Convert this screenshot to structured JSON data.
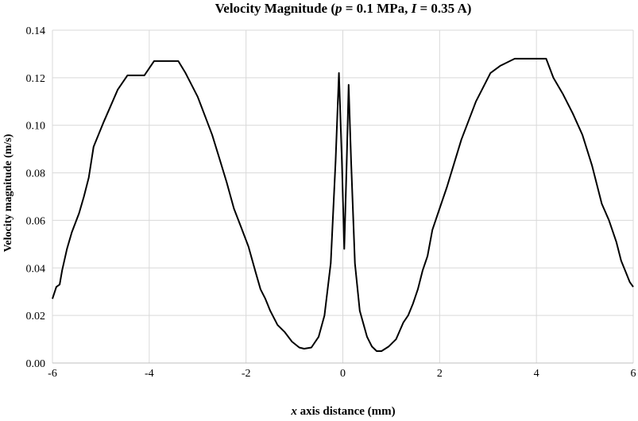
{
  "chart_data": {
    "type": "line",
    "title_parts": [
      {
        "text": "Velocity  Magnitude  (",
        "italic": false
      },
      {
        "text": "p",
        "italic": true
      },
      {
        "text": " = 0.1 MPa, ",
        "italic": false
      },
      {
        "text": "I",
        "italic": true
      },
      {
        "text": " = 0.35 A)",
        "italic": false
      }
    ],
    "xlabel_parts": [
      {
        "text": "x",
        "italic": true
      },
      {
        "text": " axis distance (mm)",
        "italic": false
      }
    ],
    "ylabel": "Velocity magnitude (m/s)",
    "xlim": [
      -6,
      6
    ],
    "ylim": [
      0,
      0.14
    ],
    "xticks": [
      -6,
      -4,
      -2,
      0,
      2,
      4,
      6
    ],
    "xtick_labels": [
      "-6",
      "-4",
      "-2",
      "0",
      "2",
      "4",
      "6"
    ],
    "yticks": [
      0,
      0.02,
      0.04,
      0.06,
      0.08,
      0.1,
      0.12,
      0.14
    ],
    "ytick_labels": [
      "0.00",
      "0.02",
      "0.04",
      "0.06",
      "0.08",
      "0.10",
      "0.12",
      "0.14"
    ],
    "grid": true,
    "line_color": "#000000",
    "grid_color": "#d9d9d9",
    "series": [
      {
        "x": [
          -6.0,
          -5.92,
          -5.85,
          -5.8,
          -5.7,
          -5.6,
          -5.45,
          -5.35,
          -5.25,
          -5.15,
          -4.95,
          -4.8,
          -4.65,
          -4.45,
          -4.1,
          -3.9,
          -3.6,
          -3.4,
          -3.25,
          -3.15,
          -3.0,
          -2.85,
          -2.7,
          -2.55,
          -2.4,
          -2.25,
          -2.1,
          -1.95,
          -1.8,
          -1.7,
          -1.6,
          -1.5,
          -1.35,
          -1.2,
          -1.05,
          -0.9,
          -0.8,
          -0.65,
          -0.5,
          -0.38,
          -0.25,
          -0.15,
          -0.08,
          -0.02,
          0.03,
          0.08,
          0.12,
          0.17,
          0.25,
          0.35,
          0.5,
          0.6,
          0.7,
          0.8,
          0.95,
          1.1,
          1.25,
          1.35,
          1.45,
          1.55,
          1.65,
          1.75,
          1.85,
          2.0,
          2.15,
          2.3,
          2.45,
          2.6,
          2.75,
          2.9,
          3.05,
          3.25,
          3.55,
          3.75,
          4.2,
          4.35,
          4.55,
          4.75,
          4.95,
          5.15,
          5.35,
          5.5,
          5.65,
          5.75,
          5.85,
          5.93,
          6.0
        ],
        "y": [
          0.027,
          0.032,
          0.033,
          0.039,
          0.048,
          0.055,
          0.063,
          0.07,
          0.078,
          0.091,
          0.101,
          0.108,
          0.115,
          0.121,
          0.121,
          0.127,
          0.127,
          0.127,
          0.122,
          0.118,
          0.112,
          0.104,
          0.096,
          0.086,
          0.076,
          0.065,
          0.057,
          0.049,
          0.038,
          0.031,
          0.027,
          0.022,
          0.016,
          0.013,
          0.009,
          0.0065,
          0.006,
          0.0065,
          0.011,
          0.02,
          0.042,
          0.085,
          0.122,
          0.085,
          0.048,
          0.085,
          0.117,
          0.085,
          0.042,
          0.022,
          0.011,
          0.007,
          0.005,
          0.005,
          0.007,
          0.01,
          0.017,
          0.02,
          0.025,
          0.031,
          0.039,
          0.045,
          0.056,
          0.065,
          0.074,
          0.084,
          0.094,
          0.102,
          0.11,
          0.116,
          0.122,
          0.125,
          0.128,
          0.128,
          0.128,
          0.12,
          0.113,
          0.105,
          0.096,
          0.083,
          0.067,
          0.06,
          0.051,
          0.043,
          0.038,
          0.034,
          0.032
        ]
      }
    ]
  }
}
